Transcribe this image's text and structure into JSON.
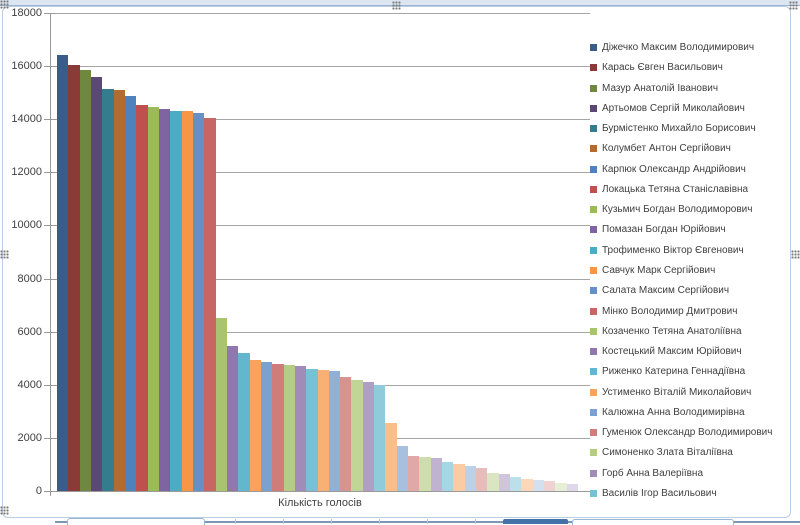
{
  "chart_data": {
    "type": "bar",
    "title": "",
    "xlabel": "Кількість голосів",
    "ylabel": "",
    "ylim": [
      0,
      18000
    ],
    "ytick_step": 2000,
    "y_tick_labels": [
      "0",
      "2000",
      "4000",
      "6000",
      "8000",
      "10000",
      "12000",
      "14000",
      "16000",
      "18000"
    ],
    "grid": "horizontal",
    "legend_position": "right",
    "legend_entries": [
      "Діжечко Максим Володимирович",
      "Карась Євген Васильович",
      "Мазур Анатолій Іванович",
      "Артьомов Сергій Миколайович",
      "Бурмістенко Михайло Борисович",
      "Колумбет Антон Сергійович",
      "Карпюк Олександр Андрійович",
      "Локацька Тетяна Станіславівна",
      "Кузьмич Богдан Володиморович",
      "Помазан Богдан Юрійович",
      "Трофименко Віктор Євгенович",
      "Савчук Марк Сергійович",
      "Салата Максим Сергійович",
      "Мінко Володимир Дмитрович",
      "Козаченко Тетяна Анатоліївна",
      "Костецький Максим Юрійович",
      "Риженко Катерина Геннадіївна",
      "Устименко Віталій Миколайович",
      "Калюжна Анна Володимирівна",
      "Гуменюк Олександр Володимирович",
      "Симоненко Злата Віталіївна",
      "Горб Анна Валеріївна",
      "Василів Ігор Васильович"
    ],
    "values": [
      16400,
      16050,
      15850,
      15600,
      15120,
      15100,
      14870,
      14520,
      14450,
      14380,
      14320,
      14300,
      14250,
      14060,
      6510,
      5460,
      5210,
      4940,
      4870,
      4800,
      4750,
      4700,
      4610,
      4560,
      4510,
      4280,
      4180,
      4090,
      3980,
      2570,
      1680,
      1320,
      1280,
      1230,
      1080,
      1010,
      950,
      880,
      660,
      640,
      540,
      470,
      420,
      390,
      310,
      260
    ],
    "palette_base": [
      "#4F81BD",
      "#C0504D",
      "#9BBB59",
      "#8064A2",
      "#4BACC6",
      "#F79646"
    ],
    "first_cycle_shade": 0.72,
    "tint_step": 0.125,
    "axis_color": "#9a9a9a",
    "grid_color": "#a6a6a6",
    "selection_border_color": "#b9cde4"
  }
}
